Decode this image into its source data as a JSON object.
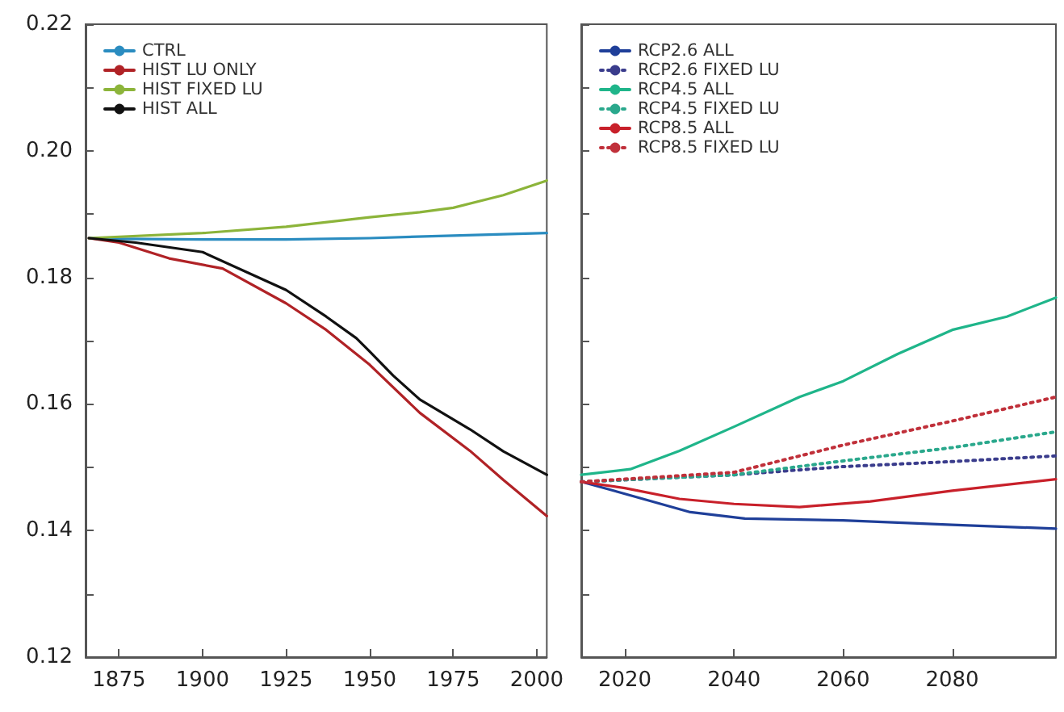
{
  "chart_data": [
    {
      "type": "line",
      "xlim": [
        1865,
        2003
      ],
      "xticks": [
        1875,
        1900,
        1925,
        1950,
        1975,
        2000
      ],
      "ylim": [
        0.12,
        0.22
      ],
      "yticks": [
        0.12,
        {
          "value": 0.13,
          "label": null
        },
        0.14,
        {
          "value": 0.15,
          "label": null
        },
        0.16,
        {
          "value": 0.17,
          "label": null
        },
        0.18,
        {
          "value": 0.19,
          "label": null
        },
        {
          "value": 0.2,
          "label": "0.20"
        },
        {
          "value": 0.21,
          "label": null
        },
        0.22
      ],
      "legend": "top left",
      "grid": false,
      "marker": "none",
      "line_style": "solid",
      "series": [
        {
          "name": "CTRL",
          "color": "#2a8cc0",
          "x": [
            1866,
            1875,
            1900,
            1925,
            1950,
            1975,
            2003
          ],
          "values": [
            0.1862,
            0.1861,
            0.186,
            0.186,
            0.1862,
            0.1866,
            0.187
          ]
        },
        {
          "name": "HIST LU ONLY",
          "color": "#b02226",
          "x": [
            1866,
            1875,
            1890,
            1906,
            1925,
            1937,
            1950,
            1965,
            1980,
            1990,
            2003
          ],
          "values": [
            0.1862,
            0.1855,
            0.183,
            0.1814,
            0.1759,
            0.1717,
            0.1662,
            0.1586,
            0.1526,
            0.148,
            0.1423
          ]
        },
        {
          "name": "HIST FIXED LU",
          "color": "#8cb43a",
          "x": [
            1866,
            1900,
            1925,
            1950,
            1965,
            1975,
            1990,
            2003
          ],
          "values": [
            0.1862,
            0.187,
            0.188,
            0.1895,
            0.1903,
            0.191,
            0.193,
            0.1953
          ]
        },
        {
          "name": "HIST ALL",
          "color": "#111111",
          "x": [
            1866,
            1880,
            1900,
            1925,
            1937,
            1946,
            1950,
            1957,
            1965,
            1980,
            1990,
            2003
          ],
          "values": [
            0.1862,
            0.1855,
            0.184,
            0.178,
            0.1738,
            0.1704,
            0.1683,
            0.1645,
            0.1607,
            0.156,
            0.1525,
            0.1488
          ]
        }
      ]
    },
    {
      "type": "line",
      "xlim": [
        2012,
        2099
      ],
      "xticks": [
        2020,
        2040,
        2060,
        2080
      ],
      "ylim": [
        0.12,
        0.22
      ],
      "yticks": [
        0.12,
        {
          "value": 0.13,
          "label": null
        },
        0.14,
        {
          "value": 0.15,
          "label": null
        },
        0.16,
        {
          "value": 0.17,
          "label": null
        },
        0.18,
        {
          "value": 0.19,
          "label": null
        },
        0.2,
        {
          "value": 0.21,
          "label": null
        },
        0.22
      ],
      "tick_labels": "x",
      "legend": "top left",
      "grid": false,
      "marker": "none",
      "line_style": "solid",
      "series": [
        {
          "name": "RCP2.6 ALL",
          "color": "#1f3f99",
          "x": [
            2012,
            2020,
            2032,
            2042,
            2060,
            2080,
            2099
          ],
          "values": [
            0.1477,
            0.1458,
            0.1429,
            0.1419,
            0.1416,
            0.1409,
            0.1403
          ]
        },
        {
          "name": "RCP2.6 FIXED LU",
          "color": "#3a3c8c",
          "line_style": "dotted",
          "x": [
            2012,
            2040,
            2060,
            2080,
            2099
          ],
          "values": [
            0.1477,
            0.1488,
            0.1501,
            0.1509,
            0.1518
          ]
        },
        {
          "name": "RCP4.5 ALL",
          "color": "#1fb58a",
          "x": [
            2012,
            2021,
            2030,
            2040,
            2052,
            2060,
            2070,
            2080,
            2090,
            2099
          ],
          "values": [
            0.1488,
            0.1497,
            0.1526,
            0.1564,
            0.1611,
            0.1636,
            0.1679,
            0.1717,
            0.1738,
            0.1768
          ]
        },
        {
          "name": "RCP4.5 FIXED LU",
          "color": "#2aa88c",
          "line_style": "dotted",
          "x": [
            2012,
            2040,
            2060,
            2080,
            2099
          ],
          "values": [
            0.1477,
            0.1488,
            0.151,
            0.1531,
            0.1556
          ]
        },
        {
          "name": "RCP8.5 ALL",
          "color": "#c8202a",
          "x": [
            2012,
            2020,
            2030,
            2040,
            2052,
            2065,
            2080,
            2099
          ],
          "values": [
            0.1477,
            0.1467,
            0.145,
            0.1442,
            0.1437,
            0.1446,
            0.1463,
            0.1481
          ]
        },
        {
          "name": "RCP8.5 FIXED LU",
          "color": "#c0303a",
          "line_style": "dotted",
          "x": [
            2012,
            2040,
            2060,
            2080,
            2099
          ],
          "values": [
            0.1477,
            0.1492,
            0.1535,
            0.1573,
            0.1611
          ]
        }
      ]
    }
  ]
}
